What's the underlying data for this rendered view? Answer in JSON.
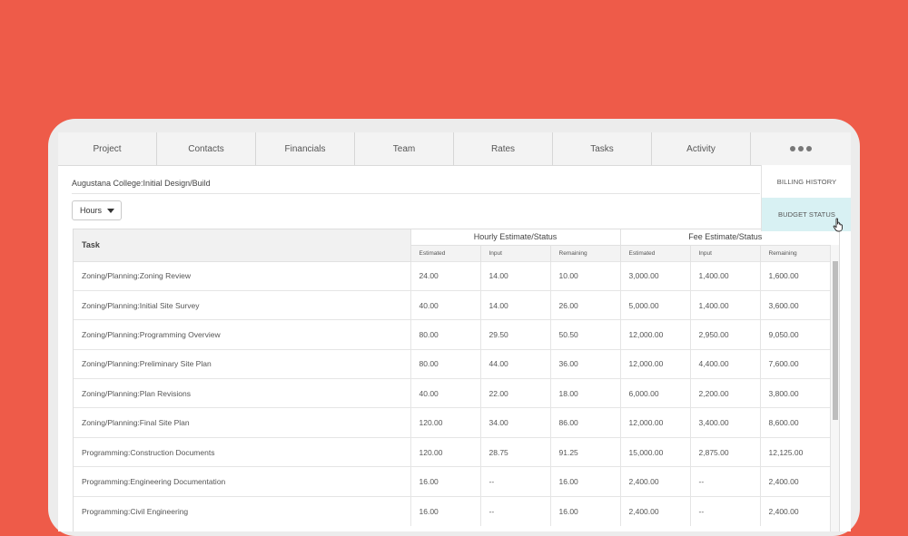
{
  "nav": {
    "tabs": [
      "Project",
      "Contacts",
      "Financials",
      "Team",
      "Rates",
      "Tasks",
      "Activity"
    ],
    "more_icon": "more-dots-icon"
  },
  "side_menu": {
    "items": [
      "BILLING HISTORY",
      "BUDGET STATUS"
    ],
    "active": "BUDGET STATUS"
  },
  "breadcrumb": "Augustana College:Initial Design/Build",
  "unit_select": {
    "value": "Hours"
  },
  "table": {
    "task_header": "Task",
    "group_headers": [
      "Hourly Estimate/Status",
      "Fee Estimate/Status"
    ],
    "sub_headers": [
      "Estimated",
      "Input",
      "Remaining",
      "Estimated",
      "Input",
      "Remaining"
    ],
    "rows": [
      [
        "Zoning/Planning:Zoning Review",
        "24.00",
        "14.00",
        "10.00",
        "3,000.00",
        "1,400.00",
        "1,600.00"
      ],
      [
        "Zoning/Planning:Initial Site Survey",
        "40.00",
        "14.00",
        "26.00",
        "5,000.00",
        "1,400.00",
        "3,600.00"
      ],
      [
        "Zoning/Planning:Programming Overview",
        "80.00",
        "29.50",
        "50.50",
        "12,000.00",
        "2,950.00",
        "9,050.00"
      ],
      [
        "Zoning/Planning:Preliminary Site Plan",
        "80.00",
        "44.00",
        "36.00",
        "12,000.00",
        "4,400.00",
        "7,600.00"
      ],
      [
        "Zoning/Planning:Plan Revisions",
        "40.00",
        "22.00",
        "18.00",
        "6,000.00",
        "2,200.00",
        "3,800.00"
      ],
      [
        "Zoning/Planning:Final Site Plan",
        "120.00",
        "34.00",
        "86.00",
        "12,000.00",
        "3,400.00",
        "8,600.00"
      ],
      [
        "Programming:Construction Documents",
        "120.00",
        "28.75",
        "91.25",
        "15,000.00",
        "2,875.00",
        "12,125.00"
      ],
      [
        "Programming:Engineering Documentation",
        "16.00",
        "--",
        "16.00",
        "2,400.00",
        "--",
        "2,400.00"
      ],
      [
        "Programming:Civil Engineering",
        "16.00",
        "--",
        "16.00",
        "2,400.00",
        "--",
        "2,400.00"
      ]
    ]
  },
  "colors": {
    "background": "#EE5B49",
    "active_menu": "#D8F1F3"
  }
}
